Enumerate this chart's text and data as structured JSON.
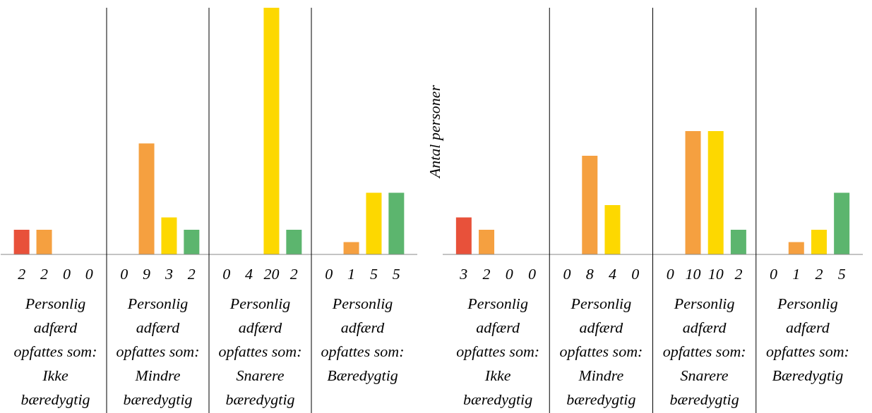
{
  "chart_data": [
    {
      "type": "bar",
      "categories": [
        "Personlig adfærd opfattes som: Ikke bæredygtig",
        "Personlig adfærd opfattes som: Mindre bæredygtig",
        "Personlig adfærd opfattes som: Snarere bæredygtig",
        "Personlig adfærd opfattes som: Bæredygtig"
      ],
      "ylim": [
        0,
        20
      ],
      "tick_labels": "x",
      "grid": false,
      "series": [
        {
          "color": "#e8513a",
          "values": [
            2,
            0,
            0,
            0
          ],
          "value_labels": [
            "2",
            "0",
            "0",
            "0"
          ]
        },
        {
          "color": "#f5a040",
          "values": [
            2,
            9,
            null,
            1
          ],
          "value_labels": [
            "2",
            "9",
            "4",
            "1"
          ]
        },
        {
          "color": "#fdd800",
          "values": [
            0,
            3,
            20,
            5
          ],
          "value_labels": [
            "0",
            "3",
            "20",
            "5"
          ]
        },
        {
          "color": "#5cb56e",
          "values": [
            null,
            2,
            2,
            5
          ],
          "value_labels": [
            "0",
            "2",
            "2",
            "5"
          ]
        }
      ]
    },
    {
      "type": "bar",
      "ylabel": "Antal personer",
      "categories": [
        "Personlig adfærd opfattes som: Ikke bæredygtig",
        "Personlig adfærd opfattes som: Mindre bæredygtig",
        "Personlig adfærd opfattes som: Snarere bæredygtig",
        "Personlig adfærd opfattes som: Bæredygtig"
      ],
      "ylim": [
        0,
        20
      ],
      "tick_labels": "x",
      "grid": false,
      "series": [
        {
          "color": "#e8513a",
          "values": [
            3,
            0,
            0,
            0
          ],
          "value_labels": [
            "3",
            "0",
            "0",
            "0"
          ]
        },
        {
          "color": "#f5a040",
          "values": [
            2,
            8,
            10,
            1
          ],
          "value_labels": [
            "2",
            "8",
            "10",
            "1"
          ]
        },
        {
          "color": "#fdd800",
          "values": [
            0,
            4,
            10,
            2
          ],
          "value_labels": [
            "0",
            "4",
            "10",
            "2"
          ]
        },
        {
          "color": "#5cb56e",
          "values": [
            null,
            null,
            2,
            5
          ],
          "value_labels": [
            "0",
            "0",
            "2",
            "5"
          ]
        }
      ]
    }
  ]
}
